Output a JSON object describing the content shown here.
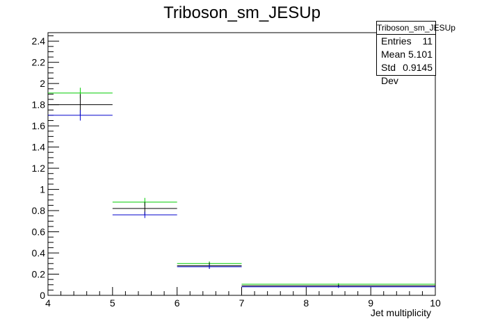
{
  "chart_data": {
    "type": "errorbar",
    "title": "Triboson_sm_JESUp",
    "xlabel": "Jet multiplicity",
    "ylabel": "",
    "xlim": [
      4,
      10
    ],
    "ylim": [
      0,
      2.48
    ],
    "x_ticks": [
      "4",
      "5",
      "6",
      "7",
      "8",
      "9",
      "10"
    ],
    "y_ticks": [
      "0",
      "0.2",
      "0.4",
      "0.6",
      "0.8",
      "1",
      "1.2",
      "1.4",
      "1.6",
      "1.8",
      "2",
      "2.2",
      "2.4"
    ],
    "grid": false,
    "bins": [
      [
        4,
        5
      ],
      [
        5,
        6
      ],
      [
        6,
        7
      ],
      [
        7,
        10
      ]
    ],
    "series": [
      {
        "color": "#00cc00",
        "values": [
          1.91,
          0.88,
          0.3,
          0.105
        ],
        "errors": [
          0.05,
          0.04,
          0.02,
          0.01
        ]
      },
      {
        "color": "#000000",
        "values": [
          1.8,
          0.82,
          0.28,
          0.09
        ],
        "errors": [
          0.1,
          0.06,
          0.03,
          0.01
        ]
      },
      {
        "color": "#0000cc",
        "values": [
          1.7,
          0.76,
          0.27,
          0.08
        ],
        "errors": [
          0.05,
          0.03,
          0.02,
          0.01
        ]
      }
    ],
    "stats": {
      "title": "Triboson_sm_JESUp",
      "entries_label": "Entries",
      "entries": "11",
      "mean_label": "Mean",
      "mean": "5.101",
      "stddev_label": "Std Dev",
      "stddev": "0.9145"
    }
  }
}
